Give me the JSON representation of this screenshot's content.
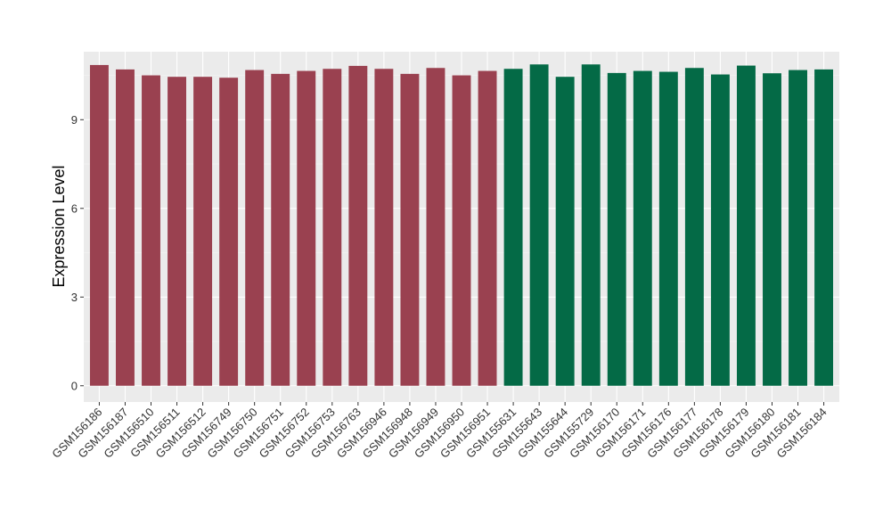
{
  "chart_data": {
    "type": "bar",
    "title": "",
    "xlabel": "",
    "ylabel": "Expression Level",
    "ylim": [
      -0.55,
      11.3
    ],
    "yticks": [
      0,
      3,
      6,
      9
    ],
    "grid": true,
    "legend": "none",
    "panel_background": "#EBEBEB",
    "gridline_color": "#FFFFFF",
    "categories": [
      "GSM156186",
      "GSM156187",
      "GSM156510",
      "GSM156511",
      "GSM156512",
      "GSM156749",
      "GSM156750",
      "GSM156751",
      "GSM156752",
      "GSM156753",
      "GSM156763",
      "GSM156946",
      "GSM156948",
      "GSM156949",
      "GSM156950",
      "GSM156951",
      "GSM155631",
      "GSM155643",
      "GSM155644",
      "GSM155729",
      "GSM156170",
      "GSM156171",
      "GSM156176",
      "GSM156177",
      "GSM156178",
      "GSM156179",
      "GSM156180",
      "GSM156181",
      "GSM156184"
    ],
    "values": [
      10.85,
      10.7,
      10.5,
      10.45,
      10.45,
      10.42,
      10.68,
      10.55,
      10.65,
      10.72,
      10.82,
      10.72,
      10.55,
      10.75,
      10.5,
      10.65,
      10.72,
      10.87,
      10.45,
      10.87,
      10.58,
      10.65,
      10.62,
      10.75,
      10.53,
      10.83,
      10.57,
      10.68,
      10.7
    ],
    "bar_colors": [
      "#9A4150",
      "#9A4150",
      "#9A4150",
      "#9A4150",
      "#9A4150",
      "#9A4150",
      "#9A4150",
      "#9A4150",
      "#9A4150",
      "#9A4150",
      "#9A4150",
      "#9A4150",
      "#9A4150",
      "#9A4150",
      "#9A4150",
      "#9A4150",
      "#046A46",
      "#046A46",
      "#046A46",
      "#046A46",
      "#046A46",
      "#046A46",
      "#046A46",
      "#046A46",
      "#046A46",
      "#046A46",
      "#046A46",
      "#046A46",
      "#046A46"
    ]
  }
}
